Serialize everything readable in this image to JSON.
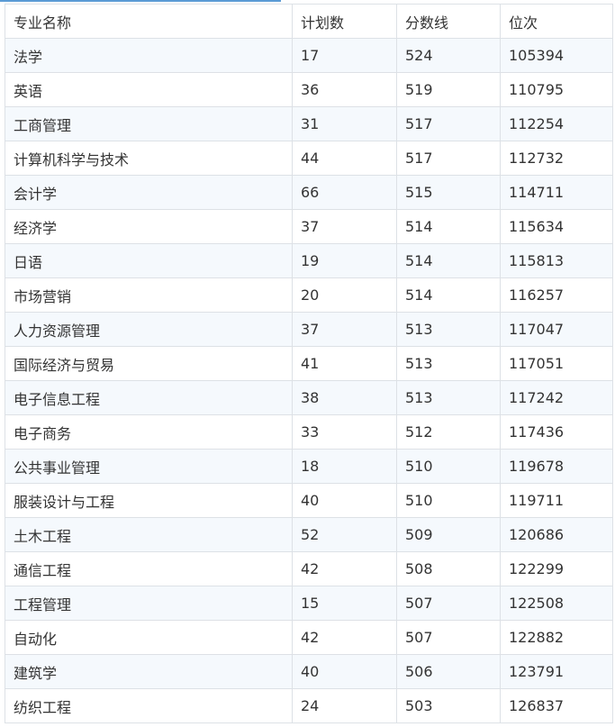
{
  "accent_color": "#5b9bd5",
  "headers": [
    "专业名称",
    "计划数",
    "分数线",
    "位次"
  ],
  "rows": [
    [
      "法学",
      "17",
      "524",
      "105394"
    ],
    [
      "英语",
      "36",
      "519",
      "110795"
    ],
    [
      "工商管理",
      "31",
      "517",
      "112254"
    ],
    [
      "计算机科学与技术",
      "44",
      "517",
      "112732"
    ],
    [
      "会计学",
      "66",
      "515",
      "114711"
    ],
    [
      "经济学",
      "37",
      "514",
      "115634"
    ],
    [
      "日语",
      "19",
      "514",
      "115813"
    ],
    [
      "市场营销",
      "20",
      "514",
      "116257"
    ],
    [
      "人力资源管理",
      "37",
      "513",
      "117047"
    ],
    [
      "国际经济与贸易",
      "41",
      "513",
      "117051"
    ],
    [
      "电子信息工程",
      "38",
      "513",
      "117242"
    ],
    [
      "电子商务",
      "33",
      "512",
      "117436"
    ],
    [
      "公共事业管理",
      "18",
      "510",
      "119678"
    ],
    [
      "服装设计与工程",
      "40",
      "510",
      "119711"
    ],
    [
      "土木工程",
      "52",
      "509",
      "120686"
    ],
    [
      "通信工程",
      "42",
      "508",
      "122299"
    ],
    [
      "工程管理",
      "15",
      "507",
      "122508"
    ],
    [
      "自动化",
      "42",
      "507",
      "122882"
    ],
    [
      "建筑学",
      "40",
      "506",
      "123791"
    ],
    [
      "纺织工程",
      "24",
      "503",
      "126837"
    ]
  ]
}
